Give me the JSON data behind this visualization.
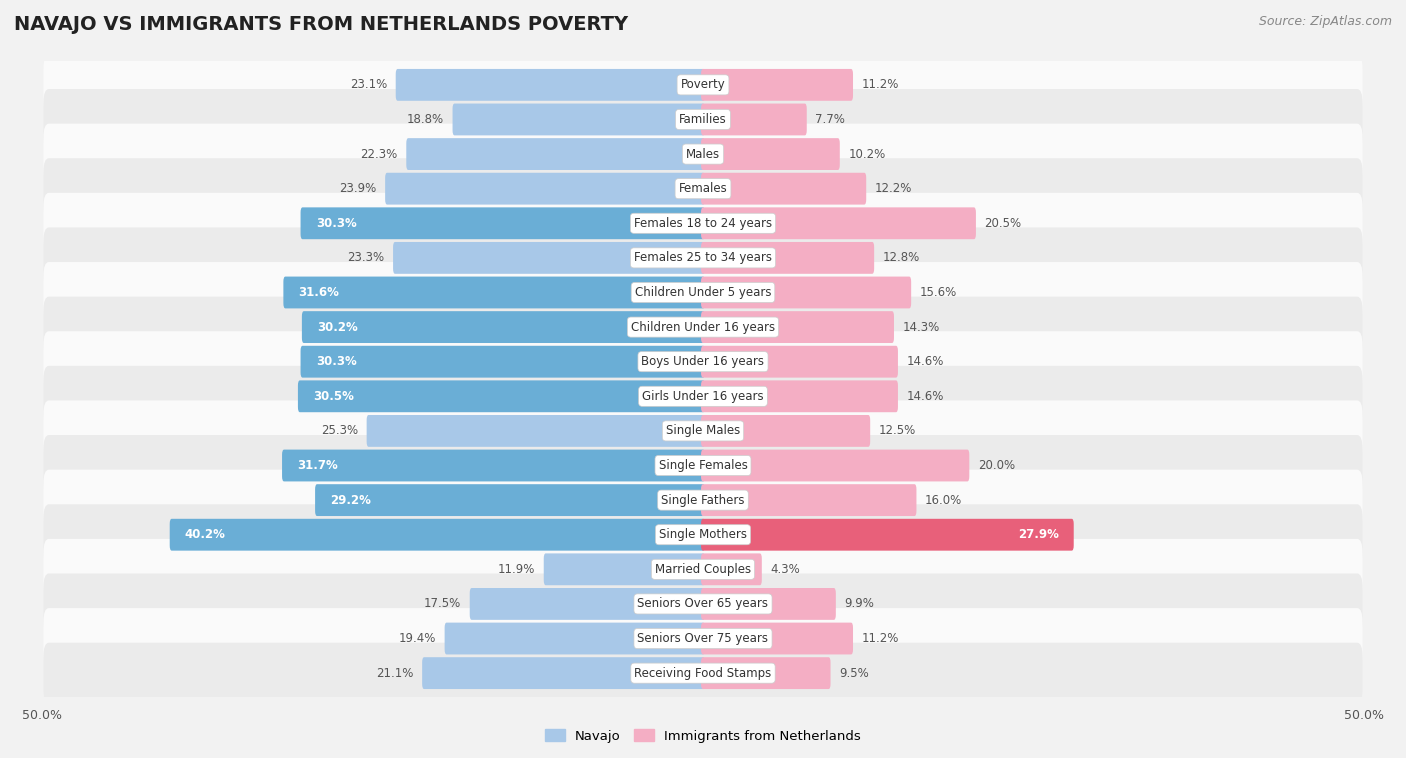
{
  "title": "NAVAJO VS IMMIGRANTS FROM NETHERLANDS POVERTY",
  "source": "Source: ZipAtlas.com",
  "categories": [
    "Poverty",
    "Families",
    "Males",
    "Females",
    "Females 18 to 24 years",
    "Females 25 to 34 years",
    "Children Under 5 years",
    "Children Under 16 years",
    "Boys Under 16 years",
    "Girls Under 16 years",
    "Single Males",
    "Single Females",
    "Single Fathers",
    "Single Mothers",
    "Married Couples",
    "Seniors Over 65 years",
    "Seniors Over 75 years",
    "Receiving Food Stamps"
  ],
  "navajo_values": [
    23.1,
    18.8,
    22.3,
    23.9,
    30.3,
    23.3,
    31.6,
    30.2,
    30.3,
    30.5,
    25.3,
    31.7,
    29.2,
    40.2,
    11.9,
    17.5,
    19.4,
    21.1
  ],
  "netherlands_values": [
    11.2,
    7.7,
    10.2,
    12.2,
    20.5,
    12.8,
    15.6,
    14.3,
    14.6,
    14.6,
    12.5,
    20.0,
    16.0,
    27.9,
    4.3,
    9.9,
    11.2,
    9.5
  ],
  "navajo_color_normal": "#a8c8e8",
  "navajo_color_highlight": "#6aaed6",
  "netherlands_color_normal": "#f4aec4",
  "netherlands_color_highlight": "#e8607a",
  "background_color": "#f2f2f2",
  "row_color_light": "#fafafa",
  "row_color_dark": "#ebebeb",
  "axis_limit": 50.0,
  "legend_navajo": "Navajo",
  "legend_netherlands": "Immigrants from Netherlands",
  "title_fontsize": 14,
  "source_fontsize": 9,
  "label_fontsize": 8.5,
  "value_fontsize": 8.5,
  "highlight_threshold_navajo": 28.0,
  "highlight_threshold_netherlands": 25.0
}
